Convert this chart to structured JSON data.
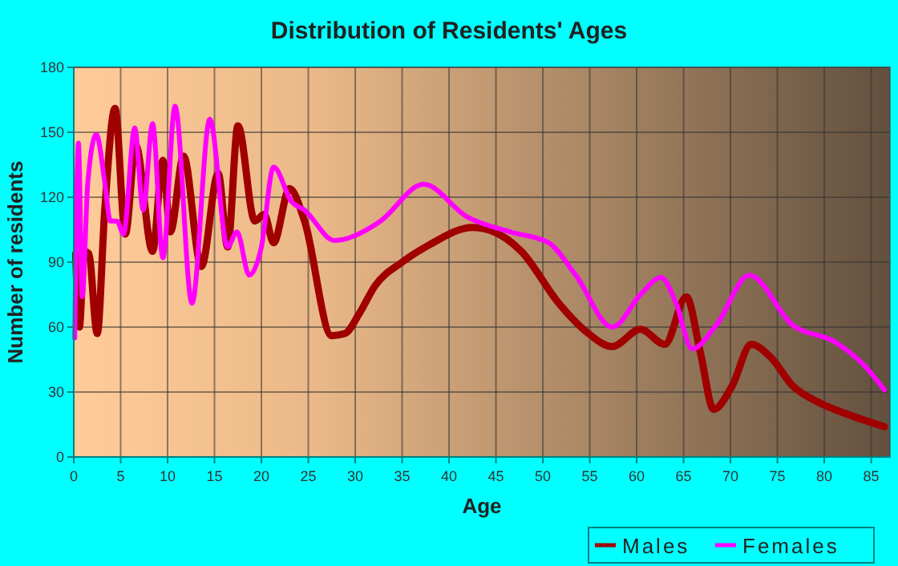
{
  "chart_data": {
    "type": "line",
    "title": "Distribution of Residents' Ages",
    "xlabel": "Age",
    "ylabel": "Number of residents",
    "xlim": [
      0,
      87
    ],
    "xticks": [
      0,
      5,
      10,
      15,
      20,
      25,
      30,
      35,
      40,
      45,
      50,
      55,
      60,
      65,
      70,
      75,
      80,
      85
    ],
    "ylim": [
      0,
      180
    ],
    "yticks": [
      0,
      30,
      60,
      90,
      120,
      150,
      180
    ],
    "grid": true,
    "legend": "bottom right",
    "series": [
      {
        "name": "Males",
        "color": "#a00000",
        "x": [
          0.2,
          0.6,
          1.1,
          1.6,
          2.5,
          3.3,
          4.4,
          5.5,
          6.6,
          8.4,
          9.5,
          10.3,
          11.7,
          13.6,
          15.4,
          16.4,
          17.5,
          19.3,
          20.3,
          21.3,
          23.0,
          24.6,
          27.5,
          28.9,
          30.4,
          32.1,
          35,
          37.9,
          42.5,
          44.8,
          47.7,
          51.7,
          54.6,
          57.4,
          60.4,
          63,
          65.3,
          66.8,
          68.2,
          70.2,
          72.2,
          74.3,
          76.6,
          79.5,
          82.3,
          86.4
        ],
        "values": [
          94,
          60,
          95,
          94,
          57,
          114,
          161,
          103,
          144,
          95,
          137,
          104,
          139,
          88,
          131,
          97,
          153,
          109,
          112,
          99,
          124,
          109,
          56,
          57,
          66,
          79,
          90,
          98,
          106,
          104,
          95,
          71,
          58,
          51,
          59,
          52,
          74,
          48,
          22,
          33,
          52,
          46,
          33,
          25,
          20,
          14
        ]
      },
      {
        "name": "Females",
        "color": "#ff00ff",
        "x": [
          0.1,
          0.5,
          0.9,
          1.5,
          2.4,
          3.3,
          3.9,
          4.6,
          5.3,
          6.5,
          7.4,
          8.4,
          9.5,
          10.8,
          12.6,
          14.5,
          16.4,
          17.4,
          18.7,
          20,
          21.3,
          23.2,
          24.6,
          27.8,
          32,
          32.7,
          37.3,
          41.9,
          46.5,
          50.6,
          53.5,
          57.4,
          60.4,
          62.6,
          64.2,
          65.9,
          68.5,
          72,
          76.6,
          81.2,
          84.1,
          86.4
        ],
        "values": [
          55,
          145,
          74,
          127,
          149,
          127,
          109,
          109,
          103,
          152,
          114,
          154,
          92,
          162,
          71,
          156,
          97,
          104,
          84,
          97,
          134,
          118,
          114,
          100,
          107,
          109,
          126,
          111,
          104,
          99,
          84,
          60,
          75,
          83,
          71,
          50,
          61,
          84,
          61,
          53,
          43,
          31
        ]
      }
    ]
  }
}
